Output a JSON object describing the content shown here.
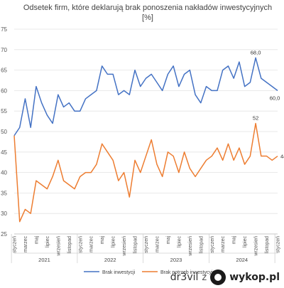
{
  "chart_data": {
    "type": "line",
    "title_line1": "Odsetek firm, które deklarują brak ponoszenia nakładów inwestycyjnych",
    "title_line2": "[%]",
    "ylim": [
      25,
      75
    ],
    "yticks": [
      25,
      30,
      35,
      40,
      45,
      50,
      55,
      60,
      65,
      70,
      75
    ],
    "grid": true,
    "legend_position": "bottom",
    "month_labels": [
      "styczeń",
      "marzec",
      "maj",
      "lipiec",
      "wrzesień",
      "listopad"
    ],
    "years": [
      "2021",
      "2022",
      "2023",
      "2024"
    ],
    "x_months": [
      "2021-01",
      "2021-02",
      "2021-03",
      "2021-04",
      "2021-05",
      "2021-06",
      "2021-07",
      "2021-08",
      "2021-09",
      "2021-10",
      "2021-11",
      "2021-12",
      "2022-01",
      "2022-02",
      "2022-03",
      "2022-04",
      "2022-05",
      "2022-06",
      "2022-07",
      "2022-08",
      "2022-09",
      "2022-10",
      "2022-11",
      "2022-12",
      "2023-01",
      "2023-02",
      "2023-03",
      "2023-04",
      "2023-05",
      "2023-06",
      "2023-07",
      "2023-08",
      "2023-09",
      "2023-10",
      "2023-11",
      "2023-12",
      "2024-01",
      "2024-02",
      "2024-03",
      "2024-04",
      "2024-05",
      "2024-06",
      "2024-07",
      "2024-08",
      "2024-09",
      "2024-10",
      "2024-11",
      "2024-12",
      "2025-01"
    ],
    "series": [
      {
        "name": "Brak inwestycji",
        "color": "#4472C4",
        "values": [
          49,
          51,
          58,
          51,
          61,
          57,
          54,
          52,
          59,
          56,
          57,
          55,
          55,
          58,
          59,
          60,
          66,
          64,
          64,
          59,
          60,
          59,
          65,
          61,
          63,
          64,
          62,
          60,
          64,
          66,
          61,
          64,
          65,
          59,
          57,
          61,
          60,
          60,
          65,
          66,
          63,
          67,
          61,
          62,
          68,
          63,
          62,
          61,
          60
        ]
      },
      {
        "name": "Brak potrzeb inwestycyjnych",
        "color": "#ED7D31",
        "values": [
          49,
          28,
          31,
          30,
          38,
          37,
          36,
          39,
          43,
          38,
          37,
          36,
          39,
          40,
          40,
          42,
          47,
          45,
          43,
          38,
          40,
          34,
          43,
          40,
          44,
          48,
          42,
          39,
          45,
          44,
          40,
          45,
          41,
          39,
          41,
          43,
          44,
          46,
          43,
          47,
          43,
          46,
          42,
          44,
          52,
          44,
          44,
          43,
          44
        ]
      }
    ],
    "data_labels": [
      {
        "series": 0,
        "month": "2024-09",
        "text": "68,0"
      },
      {
        "series": 0,
        "month": "2025-01",
        "text": "60,0"
      },
      {
        "series": 1,
        "month": "2024-09",
        "text": "52"
      },
      {
        "series": 1,
        "month": "2025-01",
        "text": "44"
      }
    ]
  },
  "watermark": {
    "user": "dr3vil",
    "separator": "z",
    "site": "wykop.pl",
    "logo_icon": "wykop-logo-icon"
  }
}
